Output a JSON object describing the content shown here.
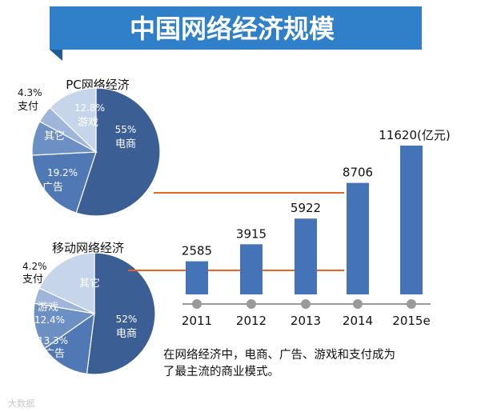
{
  "title": "中国网络经济规模",
  "colors": {
    "banner": "#2f80c9",
    "banner_dark": "#1f5d98",
    "bar": "#4573b7",
    "connector": "#e8651f",
    "pie_dark": "#3b5f94",
    "pie_mid": "#4f78b5",
    "pie_light": "#8ea9d1",
    "pie_pale": "#c7d5ea",
    "axis": "#9a9a9a"
  },
  "chart_data": [
    {
      "type": "pie",
      "title": "PC网络经济",
      "slices": [
        {
          "label": "电商",
          "value": 55,
          "value_label": "55%",
          "color": "#3b5f94"
        },
        {
          "label": "广告",
          "value": 19.2,
          "value_label": "19.2%",
          "color": "#4f78b5"
        },
        {
          "label": "其它",
          "value": 8.7,
          "value_label": "",
          "color": "#6d90c4"
        },
        {
          "label": "支付",
          "value": 4.3,
          "value_label": "4.3%",
          "color": "#9fb6da"
        },
        {
          "label": "游戏",
          "value": 12.8,
          "value_label": "12.8%",
          "color": "#c7d5ea"
        }
      ]
    },
    {
      "type": "pie",
      "title": "移动网络经济",
      "slices": [
        {
          "label": "电商",
          "value": 52,
          "value_label": "52%",
          "color": "#3b5f94"
        },
        {
          "label": "广告",
          "value": 13.3,
          "value_label": "13.3%",
          "color": "#4f78b5"
        },
        {
          "label": "游戏",
          "value": 12.4,
          "value_label": "12.4%",
          "color": "#6d90c4"
        },
        {
          "label": "支付",
          "value": 4.2,
          "value_label": "4.2%",
          "color": "#9fb6da"
        },
        {
          "label": "其它",
          "value": 18.1,
          "value_label": "",
          "color": "#c7d5ea"
        }
      ]
    },
    {
      "type": "bar",
      "categories": [
        "2011",
        "2012",
        "2013",
        "2014",
        "2015e"
      ],
      "values": [
        2585,
        3915,
        5922,
        8706,
        11620
      ],
      "value_labels": [
        "2585",
        "3915",
        "5922",
        "8706",
        "11620(亿元)"
      ],
      "unit": "亿元",
      "ylim": [
        0,
        12000
      ]
    }
  ],
  "caption_line1": "在网络经济中，电商、广告、游戏和支付成为",
  "caption_line2": "了最主流的商业模式。",
  "watermark": "大数据"
}
